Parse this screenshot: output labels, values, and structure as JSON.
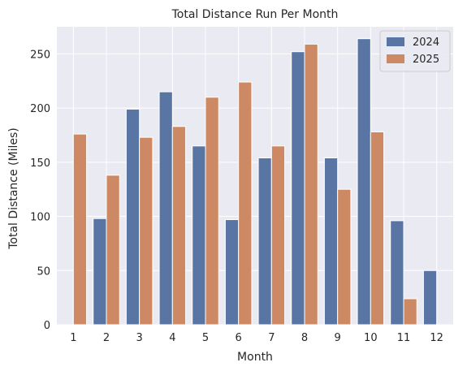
{
  "chart_data": {
    "type": "bar",
    "title": "Total Distance Run Per Month",
    "xlabel": "Month",
    "ylabel": "Total Distance (Miles)",
    "categories": [
      "1",
      "2",
      "3",
      "4",
      "5",
      "6",
      "7",
      "8",
      "9",
      "10",
      "11",
      "12"
    ],
    "series": [
      {
        "name": "2024",
        "color": "#5875a4",
        "values": [
          0,
          98,
          199,
          215,
          165,
          97,
          154,
          252,
          154,
          264,
          96,
          50
        ]
      },
      {
        "name": "2025",
        "color": "#cc8963",
        "values": [
          176,
          138,
          173,
          183,
          210,
          224,
          165,
          259,
          125,
          178,
          24,
          0
        ]
      }
    ],
    "ylim": [
      0,
      275
    ],
    "yticks": [
      0,
      50,
      100,
      150,
      200,
      250
    ],
    "grid": true,
    "legend_position": "top-right",
    "background_color": "#eaeaf2",
    "grid_color": "#ffffff"
  }
}
